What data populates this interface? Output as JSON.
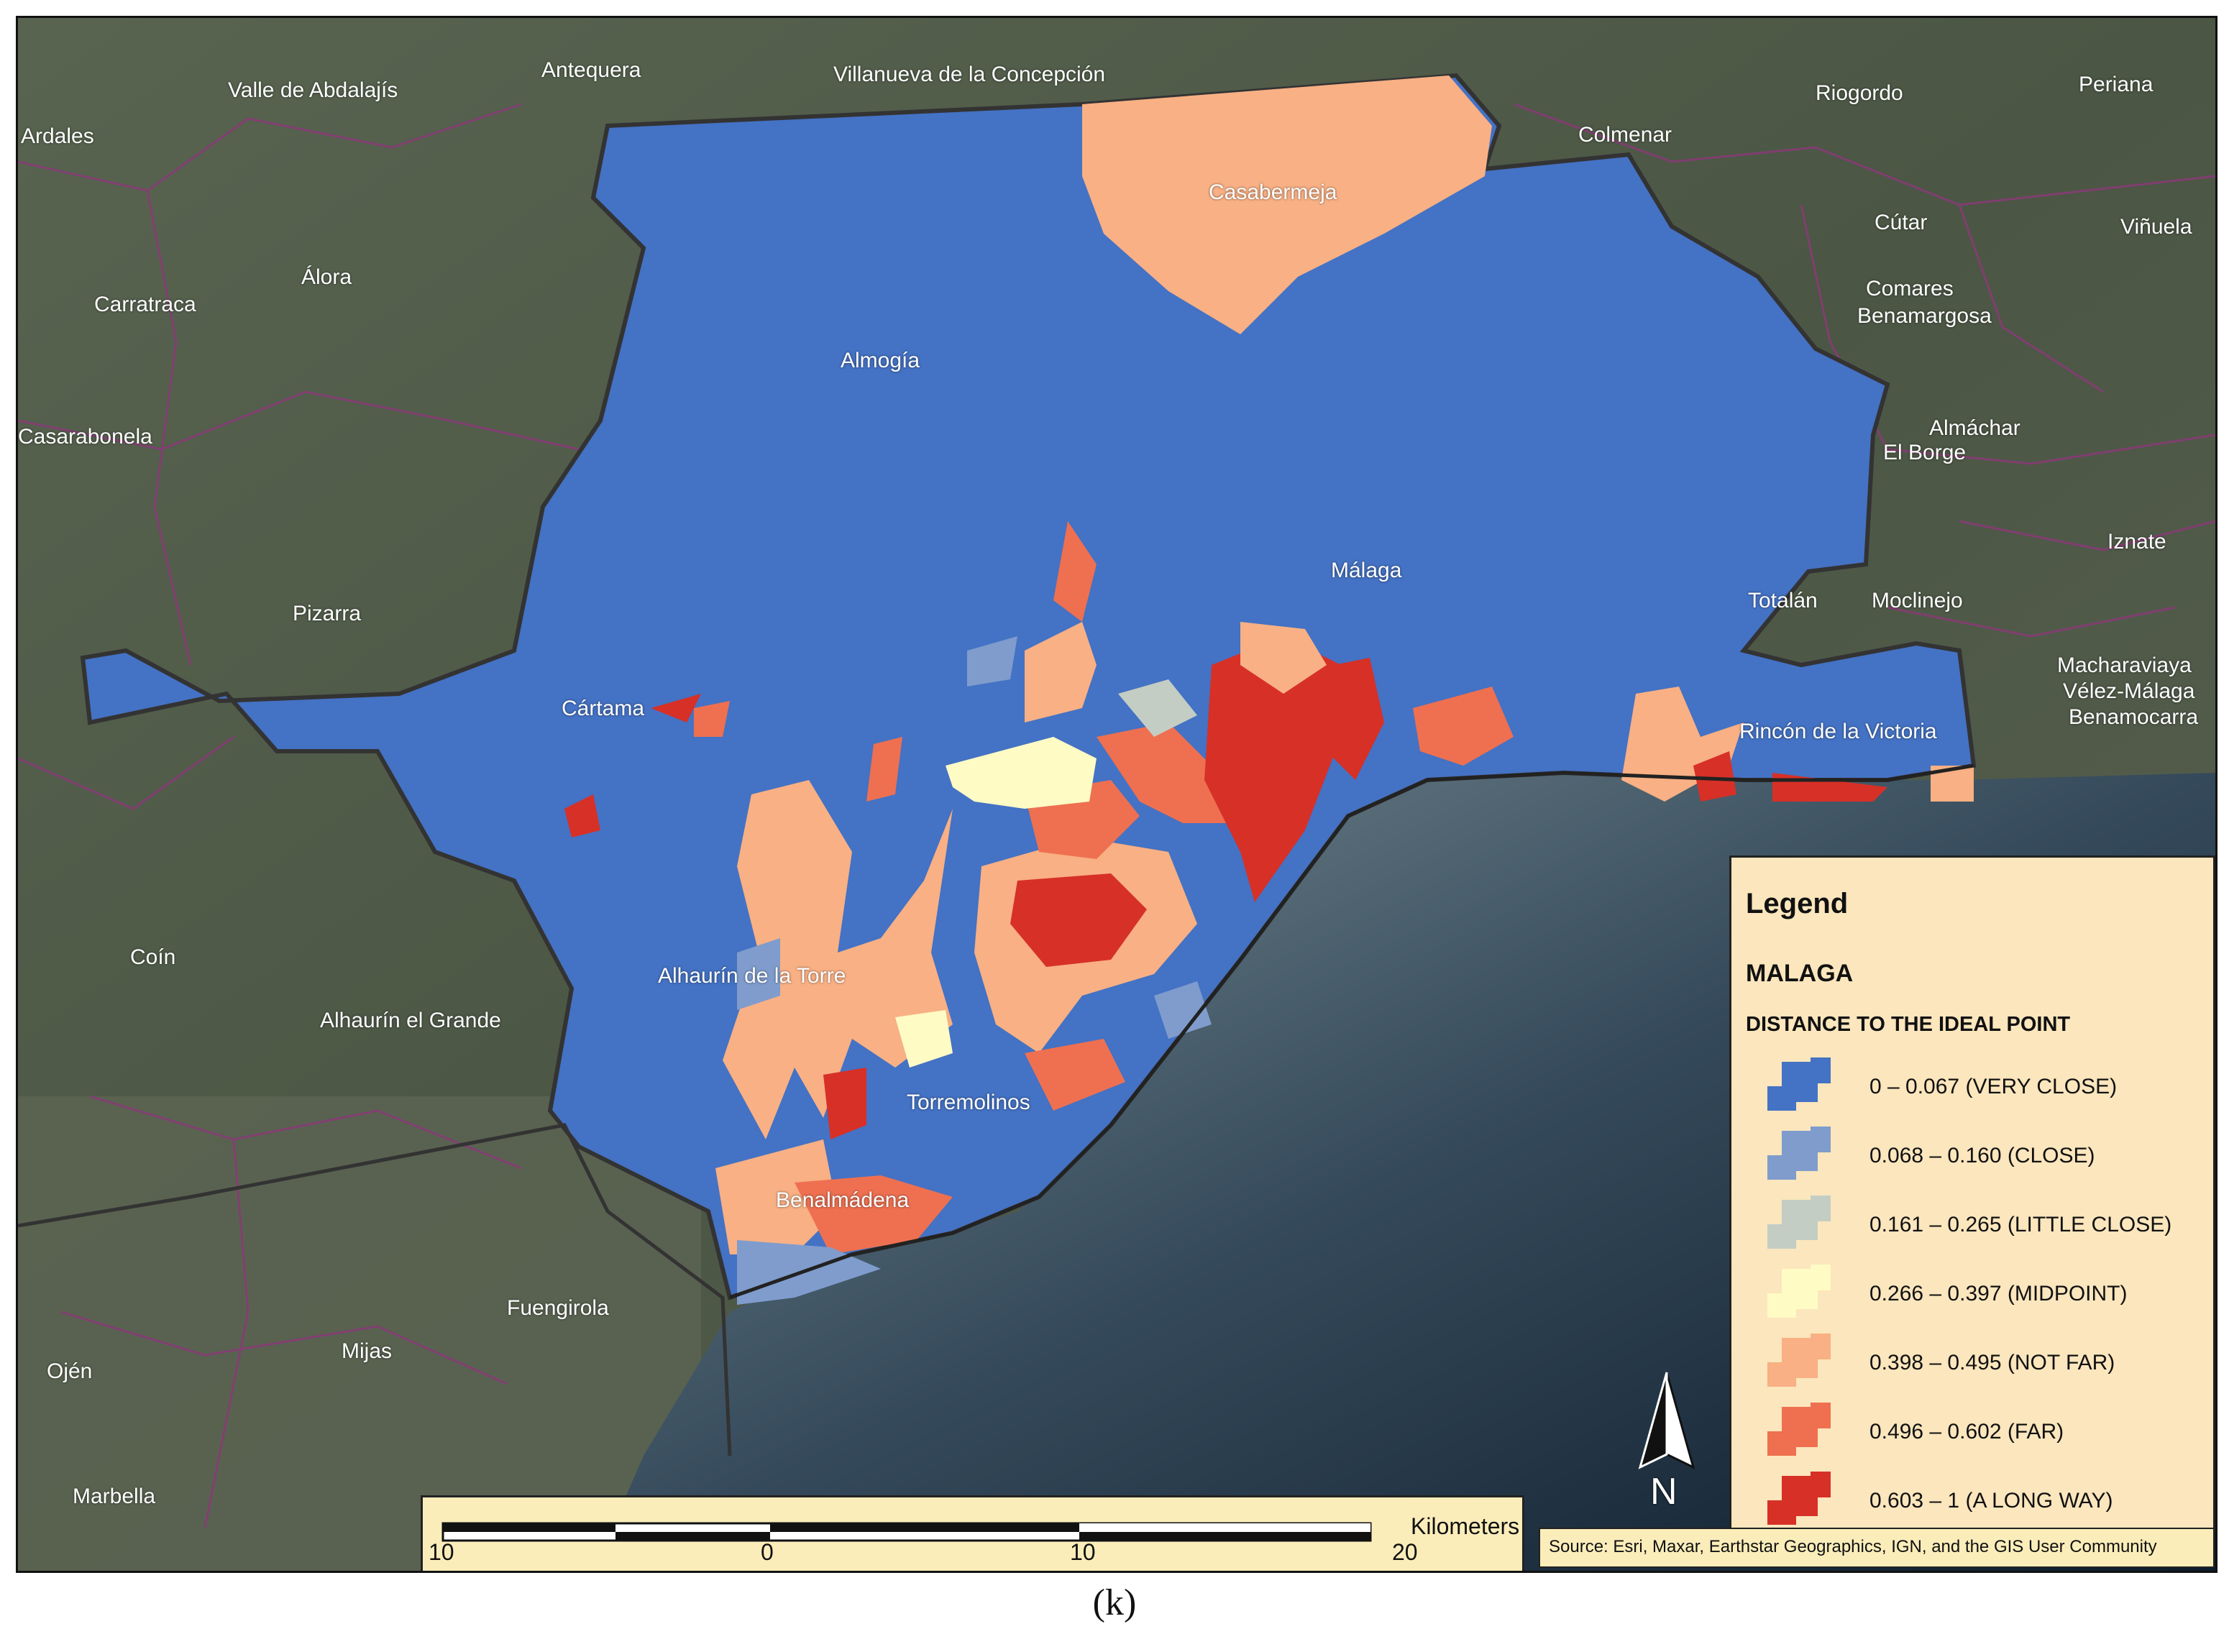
{
  "places": {
    "antequera": "Antequera",
    "villanueva": "Villanueva de la Concepción",
    "valle": "Valle de Abdalajís",
    "ardales": "Ardales",
    "riogordo": "Riogordo",
    "periana": "Periana",
    "colmenar": "Colmenar",
    "casabermeja": "Casabermeja",
    "cutar": "Cútar",
    "vinuela": "Viñuela",
    "alora": "Álora",
    "carratraca": "Carratraca",
    "comares": "Comares",
    "benamargosa": "Benamargosa",
    "almogia": "Almogía",
    "casarabonela": "Casarabonela",
    "almachar": "Almáchar",
    "elborge": "El Borge",
    "iznate": "Iznate",
    "malaga": "Málaga",
    "pizarra": "Pizarra",
    "totalan": "Totalán",
    "moclinejo": "Moclinejo",
    "macharaviaya": "Macharaviaya",
    "velez": "Vélez-Málaga",
    "benamocarra": "Benamocarra",
    "cartama": "Cártama",
    "rincon": "Rincón de la Victoria",
    "coin": "Coín",
    "alhaurin_torre": "Alhaurín de la Torre",
    "alhaurin_grande": "Alhaurín el Grande",
    "torremolinos": "Torremolinos",
    "benalmadena": "Benalmádena",
    "fuengirola": "Fuengirola",
    "mijas": "Mijas",
    "ojen": "Ojén",
    "marbella": "Marbella"
  },
  "legend": {
    "title": "Legend",
    "layer": "MALAGA",
    "field": "DISTANCE TO THE IDEAL POINT",
    "classes": [
      {
        "label": "0 – 0.067 (VERY CLOSE)",
        "color": "#4472c4"
      },
      {
        "label": "0.068 – 0.160 (CLOSE)",
        "color": "#7f9ccd"
      },
      {
        "label": "0.161 – 0.265 (LITTLE CLOSE)",
        "color": "#c4cdc4"
      },
      {
        "label": "0.266 – 0.397 (MIDPOINT)",
        "color": "#fffbc4"
      },
      {
        "label": "0.398 – 0.495 (NOT FAR)",
        "color": "#f8b084"
      },
      {
        "label": "0.496 – 0.602 (FAR)",
        "color": "#ee7050"
      },
      {
        "label": "0.603 – 1 (A LONG WAY)",
        "color": "#d73027"
      }
    ]
  },
  "scalebar": {
    "ticks": [
      "10",
      "0",
      "10",
      "20"
    ],
    "unit": "Kilometers"
  },
  "north": "N",
  "source": "Source: Esri, Maxar, Earthstar Geographics, IGN, and the GIS User Community",
  "caption": "(k)"
}
